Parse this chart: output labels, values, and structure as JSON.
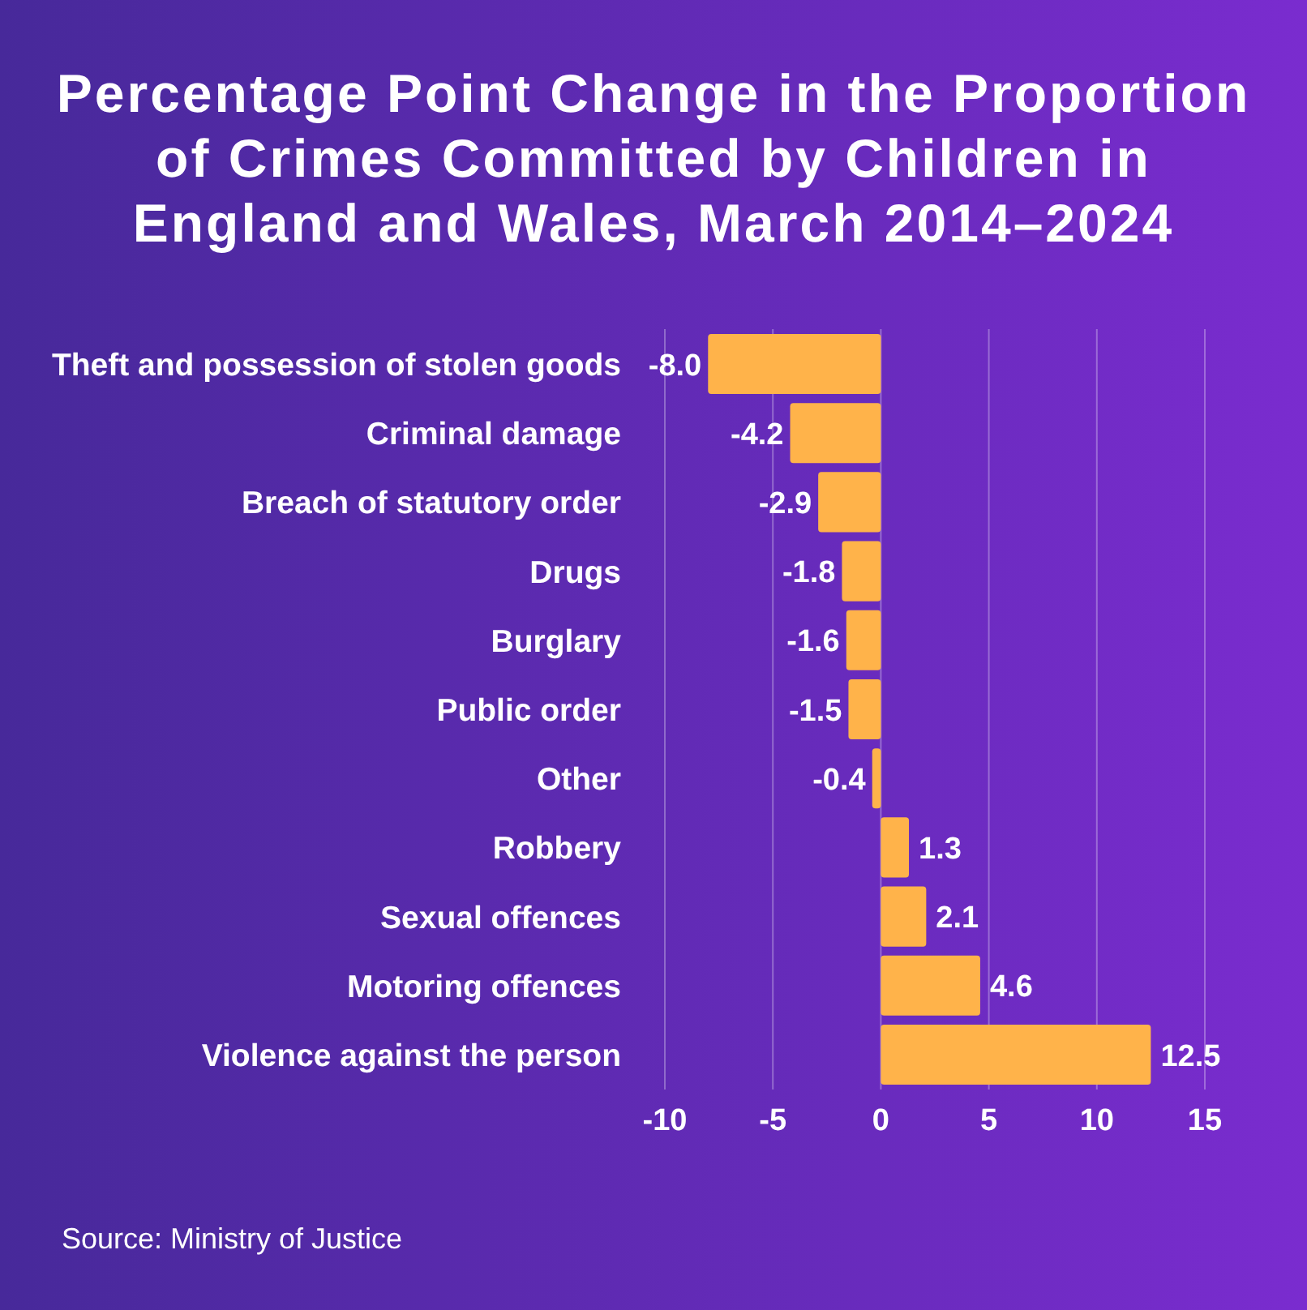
{
  "chart_data": {
    "type": "bar",
    "orientation": "horizontal",
    "title": "Percentage Point Change in the Proportion of Crimes Committed by Children in England and Wales, March 2014–2024",
    "categories": [
      "Theft and possession of stolen goods",
      "Criminal damage",
      "Breach of statutory order",
      "Drugs",
      "Burglary",
      "Public order",
      "Other",
      "Robbery",
      "Sexual offences",
      "Motoring offences",
      "Violence against the person"
    ],
    "values": [
      -8.0,
      -4.2,
      -2.9,
      -1.8,
      -1.6,
      -1.5,
      -0.4,
      1.3,
      2.1,
      4.6,
      12.5
    ],
    "value_labels": [
      "-8.0",
      "-4.2",
      "-2.9",
      "-1.8",
      "-1.6",
      "-1.5",
      "-0.4",
      "1.3",
      "2.1",
      "4.6",
      "12.5"
    ],
    "color": "#ffb34a",
    "xlim": [
      -10,
      15
    ],
    "xticks": [
      -10,
      -5,
      0,
      5,
      10,
      15
    ],
    "grid": "x",
    "annotations": [
      "Source: Ministry of Justice"
    ]
  }
}
